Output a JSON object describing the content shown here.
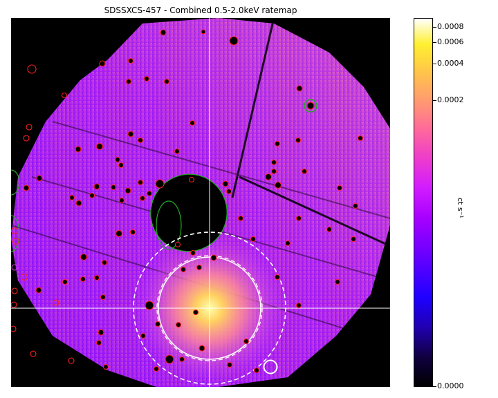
{
  "title": "SDSSXCS-457 - Combined 0.5-2.0keV ratemap",
  "colorbar": {
    "label": "ct s⁻¹",
    "ticks": [
      "0.0008",
      "0.0006",
      "0.0004",
      "0.0002",
      "0.0000"
    ]
  },
  "colors": {
    "background": "#000000",
    "point_source_region": "#ff2020",
    "extended_region": "#22aa22",
    "annulus": "#ffffff",
    "crosshair": "#ffffff"
  }
}
